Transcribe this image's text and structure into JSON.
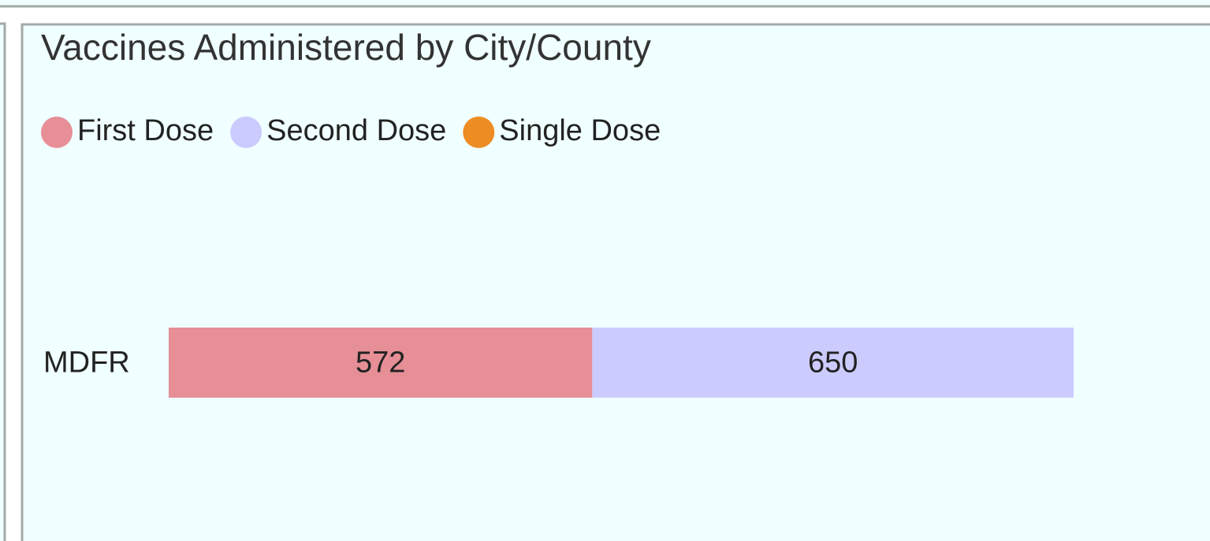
{
  "chart_data": {
    "type": "stacked-bar-horizontal",
    "title": "Vaccines Administered by City/County",
    "categories": [
      "MDFR"
    ],
    "series": [
      {
        "name": "First Dose",
        "color": "#e68f96",
        "values": [
          572
        ]
      },
      {
        "name": "Second Dose",
        "color": "#cccbfd",
        "values": [
          650
        ]
      },
      {
        "name": "Single Dose",
        "color": "#ee8c24",
        "values": [
          null
        ]
      }
    ]
  }
}
